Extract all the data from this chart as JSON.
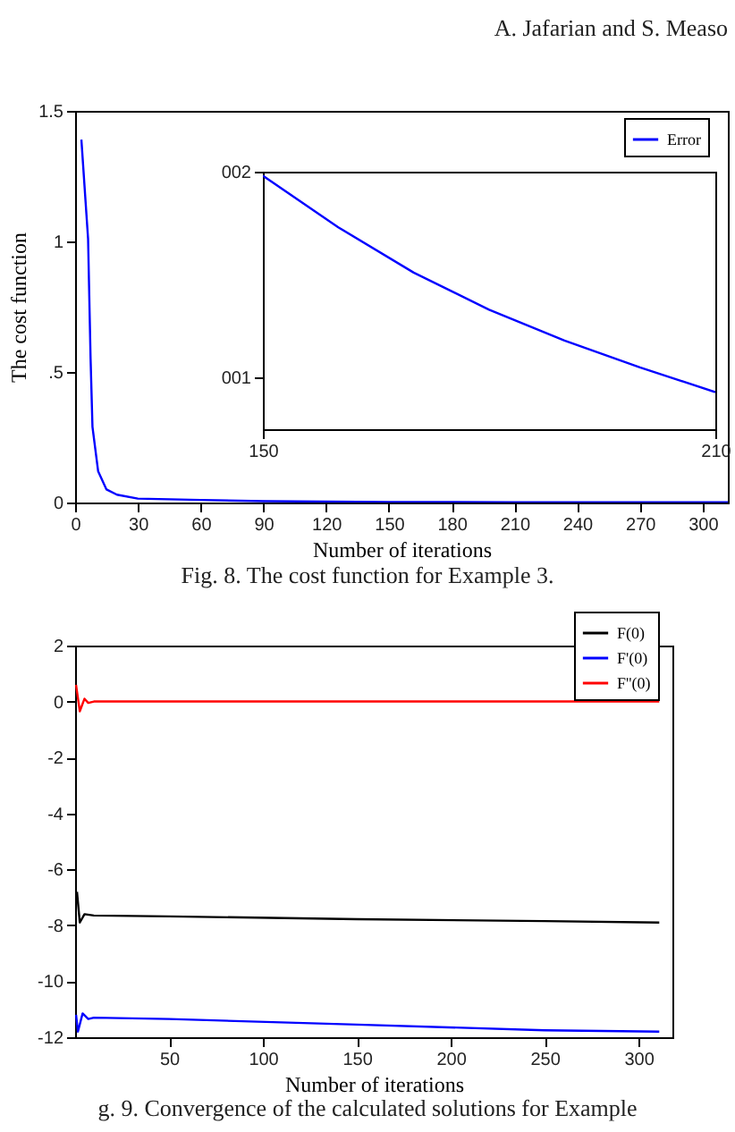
{
  "chart_data": [
    {
      "type": "line",
      "xlabel": "Number of iterations",
      "ylabel": "The cost function",
      "annotations": [
        "A. Jafarian and S. Measo",
        "Fig. 8. The cost function for Example 3."
      ],
      "xlim": [
        0,
        312
      ],
      "xticks": [
        0,
        30,
        60,
        90,
        120,
        150,
        180,
        210,
        240,
        270,
        300
      ],
      "ylim": [
        0,
        1.5
      ],
      "yticks": [
        0,
        {
          "value": 0.5,
          "label": ".5"
        },
        1,
        1.5
      ],
      "legend": "top right",
      "series": [
        {
          "name": "Error",
          "color": "#0000ff",
          "x": [
            3,
            6.2,
            7.4,
            8.3,
            11,
            15,
            20,
            30,
            60,
            90,
            150,
            210,
            312
          ],
          "values": [
            1.39,
            1.01,
            0.55,
            0.29,
            0.12,
            0.05,
            0.03,
            0.015,
            0.01,
            0.005,
            0.002,
            0.001,
            0.001
          ]
        }
      ]
    },
    {
      "type": "line",
      "xlim": [
        150,
        210
      ],
      "xticks": [
        150,
        210
      ],
      "ylim": [
        0.75,
        2
      ],
      "yticks": [
        {
          "value": 1,
          "label": "001"
        },
        {
          "value": 2,
          "label": "002"
        }
      ],
      "series": [
        {
          "color": "#0000ff",
          "x": [
            150,
            160,
            170,
            180,
            190,
            200,
            210
          ],
          "values": [
            1.98,
            1.73,
            1.51,
            1.33,
            1.18,
            1.05,
            0.93
          ]
        }
      ]
    },
    {
      "type": "line",
      "xlabel": "Number of iterations",
      "annotations": [
        "g. 9. Convergence of the calculated solutions for Example"
      ],
      "xlim": [
        0,
        318
      ],
      "xticks": [
        50,
        100,
        150,
        200,
        250,
        300
      ],
      "ylim": [
        -12,
        2
      ],
      "yticks": [
        -12,
        -10,
        -8,
        -6,
        -4,
        -2,
        0,
        2
      ],
      "legend": "top right",
      "series": [
        {
          "name": "F(0)",
          "color": "#000000",
          "x": [
            1,
            2.5,
            5,
            10,
            50,
            150,
            250,
            311
          ],
          "values": [
            -6.8,
            -7.9,
            -7.6,
            -7.65,
            -7.68,
            -7.78,
            -7.85,
            -7.9
          ]
        },
        {
          "name": "F'(0)",
          "color": "#0000ff",
          "x": [
            0.5,
            1.5,
            4,
            7,
            10,
            50,
            150,
            250,
            311
          ],
          "values": [
            -11.2,
            -11.8,
            -11.15,
            -11.35,
            -11.3,
            -11.35,
            -11.55,
            -11.75,
            -11.8
          ]
        },
        {
          "name": "F''(0)",
          "color": "#ff0000",
          "x": [
            0.5,
            2.5,
            5,
            7,
            10,
            311
          ],
          "values": [
            0.6,
            -0.35,
            0.1,
            -0.05,
            0,
            0
          ]
        }
      ]
    }
  ]
}
